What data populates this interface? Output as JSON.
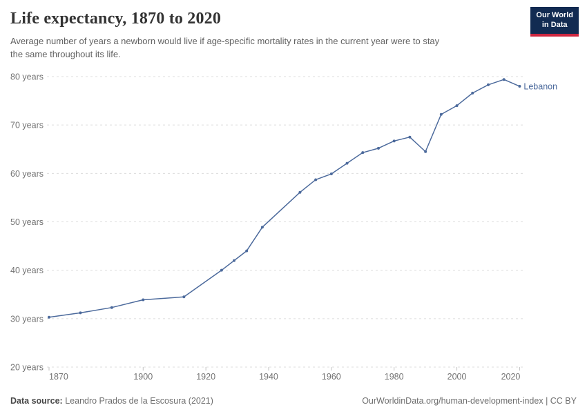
{
  "header": {
    "title": "Life expectancy, 1870 to 2020",
    "subtitle": "Average number of years a newborn would live if age-specific mortality rates in the current year were to stay\nthe same throughout its life."
  },
  "logo": {
    "line1": "Our World",
    "line2": "in Data",
    "bg_color": "#122b52",
    "accent_color": "#ce2740"
  },
  "chart_data": {
    "type": "line",
    "title": "Life expectancy, 1870 to 2020",
    "xlabel": "",
    "ylabel": "",
    "xlim": [
      1870,
      2020
    ],
    "ylim": [
      20,
      80
    ],
    "grid": "horizontal-dashed",
    "grid_color": "#dcdcdc",
    "tick_text_color": "#737373",
    "tick_mark_color": "#c2c2c2",
    "y_ticks": [
      {
        "v": 80,
        "label": "80 years"
      },
      {
        "v": 70,
        "label": "70 years"
      },
      {
        "v": 60,
        "label": "60 years"
      },
      {
        "v": 50,
        "label": "50 years"
      },
      {
        "v": 40,
        "label": "40 years"
      },
      {
        "v": 30,
        "label": "30 years"
      },
      {
        "v": 20,
        "label": "20 years"
      }
    ],
    "x_ticks": [
      {
        "v": 1870,
        "label": "1870"
      },
      {
        "v": 1900,
        "label": "1900"
      },
      {
        "v": 1920,
        "label": "1920"
      },
      {
        "v": 1940,
        "label": "1940"
      },
      {
        "v": 1960,
        "label": "1960"
      },
      {
        "v": 1980,
        "label": "1980"
      },
      {
        "v": 2000,
        "label": "2000"
      },
      {
        "v": 2020,
        "label": "2020"
      }
    ],
    "series": [
      {
        "name": "Lebanon",
        "color": "#4c6a9c",
        "points": [
          [
            1870,
            30.3
          ],
          [
            1880,
            31.2
          ],
          [
            1890,
            32.3
          ],
          [
            1900,
            33.9
          ],
          [
            1913,
            34.5
          ],
          [
            1925,
            40.0
          ],
          [
            1929,
            42.0
          ],
          [
            1933,
            44.0
          ],
          [
            1938,
            48.9
          ],
          [
            1950,
            56.1
          ],
          [
            1955,
            58.7
          ],
          [
            1960,
            59.9
          ],
          [
            1965,
            62.1
          ],
          [
            1970,
            64.3
          ],
          [
            1975,
            65.2
          ],
          [
            1980,
            66.7
          ],
          [
            1985,
            67.5
          ],
          [
            1990,
            64.5
          ],
          [
            1995,
            72.2
          ],
          [
            2000,
            74.0
          ],
          [
            2005,
            76.6
          ],
          [
            2010,
            78.3
          ],
          [
            2015,
            79.4
          ],
          [
            2020,
            78.0
          ]
        ]
      }
    ]
  },
  "footer": {
    "source_label": "Data source:",
    "source_text": " Leandro Prados de la Escosura (2021)",
    "credit_text": "OurWorldinData.org/human-development-index | CC BY"
  }
}
